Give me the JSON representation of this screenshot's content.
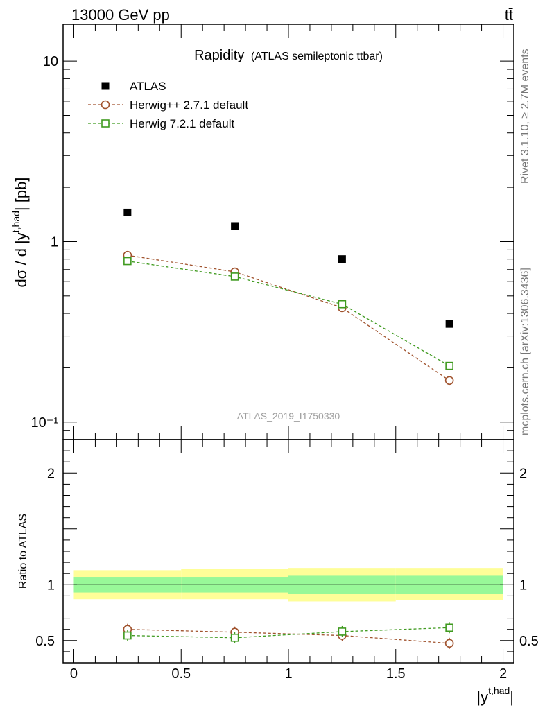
{
  "header": {
    "left": "13000 GeV pp",
    "right": "tt̄"
  },
  "side_labels": {
    "rivet": "Rivet 3.1.10, ≥ 2.7M events",
    "mcplots": "mcplots.cern.ch [arXiv:1306.3436]"
  },
  "chart_data": [
    {
      "type": "scatter",
      "panel": "main",
      "title": "Rapidity",
      "subtitle": "(ATLAS semileptonic ttbar)",
      "watermark": "ATLAS_2019_I1750330",
      "ylabel": "dσ / d |y^{t,had}| [pb]",
      "yscale": "log",
      "ylim": [
        0.08,
        16
      ],
      "xlim": [
        -0.05,
        2.05
      ],
      "y_tick_labels": [
        "10⁻¹",
        "1",
        "10"
      ],
      "y_tick_values": [
        0.1,
        1,
        10
      ],
      "legend_position": "top-left",
      "x": [
        0.25,
        0.75,
        1.25,
        1.75
      ],
      "series": [
        {
          "name": "ATLAS",
          "values": [
            1.45,
            1.22,
            0.8,
            0.35
          ],
          "color": "#000000",
          "marker": "filled-square",
          "line": false
        },
        {
          "name": "Herwig++ 2.7.1 default",
          "values": [
            0.84,
            0.68,
            0.43,
            0.17
          ],
          "color": "#a0522d",
          "marker": "open-circle",
          "line": true
        },
        {
          "name": "Herwig 7.2.1 default",
          "values": [
            0.78,
            0.64,
            0.45,
            0.205
          ],
          "color": "#3f9a1f",
          "marker": "open-square",
          "line": true
        }
      ]
    },
    {
      "type": "scatter",
      "panel": "ratio",
      "ylabel": "Ratio to ATLAS",
      "xlabel": "|y^{t,had}|",
      "ylim": [
        0.3,
        2.3
      ],
      "xlim": [
        -0.05,
        2.05
      ],
      "x_tick_labels": [
        "0",
        "0.5",
        "1",
        "1.5",
        "2"
      ],
      "x_tick_values": [
        0,
        0.5,
        1,
        1.5,
        2
      ],
      "y_tick_labels": [
        "0.5",
        "1",
        "2"
      ],
      "y_tick_values": [
        0.5,
        1,
        2
      ],
      "bin_edges": [
        0,
        0.5,
        1,
        1.5,
        2
      ],
      "band_inner": [
        [
          0.93,
          1.07
        ],
        [
          0.93,
          1.07
        ],
        [
          0.92,
          1.08
        ],
        [
          0.92,
          1.08
        ]
      ],
      "band_outer": [
        [
          0.87,
          1.13
        ],
        [
          0.87,
          1.14
        ],
        [
          0.85,
          1.15
        ],
        [
          0.86,
          1.15
        ]
      ],
      "band_inner_color": "#98f898",
      "band_outer_color": "#fefe98",
      "x": [
        0.25,
        0.75,
        1.25,
        1.75
      ],
      "series": [
        {
          "name": "Herwig++ 2.7.1 default",
          "values": [
            0.6,
            0.575,
            0.545,
            0.475
          ],
          "color": "#a0522d",
          "marker": "open-circle"
        },
        {
          "name": "Herwig 7.2.1 default",
          "values": [
            0.545,
            0.525,
            0.58,
            0.615
          ],
          "color": "#3f9a1f",
          "marker": "open-square"
        }
      ]
    }
  ]
}
